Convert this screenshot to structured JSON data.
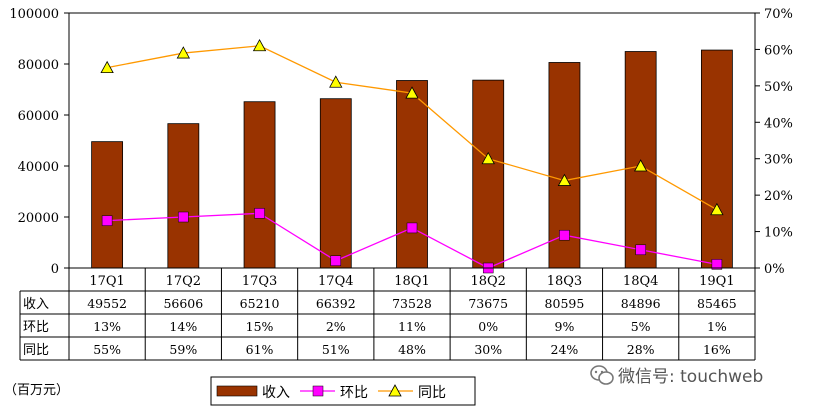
{
  "chart_data": {
    "type": "bar",
    "categories": [
      "17Q1",
      "17Q2",
      "17Q3",
      "17Q4",
      "18Q1",
      "18Q2",
      "18Q3",
      "18Q4",
      "19Q1"
    ],
    "series": [
      {
        "name": "收入",
        "type": "bar",
        "axis": "left",
        "color": "#993300",
        "values": [
          49552,
          56606,
          65210,
          66392,
          73528,
          73675,
          80595,
          84896,
          85465
        ]
      },
      {
        "name": "环比",
        "type": "line",
        "axis": "right",
        "color": "#ff00ff",
        "values": [
          13,
          14,
          15,
          2,
          11,
          0,
          9,
          5,
          1
        ]
      },
      {
        "name": "同比",
        "type": "line",
        "axis": "right",
        "color": "#ff9900",
        "marker_color": "#ffff00",
        "values": [
          55,
          59,
          61,
          51,
          48,
          30,
          24,
          28,
          16
        ]
      }
    ],
    "y_left": {
      "ylim": [
        0,
        100000
      ],
      "ticks": [
        0,
        20000,
        40000,
        60000,
        80000,
        100000
      ]
    },
    "y_right": {
      "ylim": [
        0,
        70
      ],
      "ticks": [
        "0%",
        "10%",
        "20%",
        "30%",
        "40%",
        "50%",
        "60%",
        "70%"
      ]
    },
    "table": {
      "rows": [
        {
          "label": "收入",
          "cells": [
            "49552",
            "56606",
            "65210",
            "66392",
            "73528",
            "73675",
            "80595",
            "84896",
            "85465"
          ]
        },
        {
          "label": "环比",
          "cells": [
            "13%",
            "14%",
            "15%",
            "2%",
            "11%",
            "0%",
            "9%",
            "5%",
            "1%"
          ]
        },
        {
          "label": "同比",
          "cells": [
            "55%",
            "59%",
            "61%",
            "51%",
            "48%",
            "30%",
            "24%",
            "28%",
            "16%"
          ]
        }
      ]
    },
    "unit_label": "（百万元）",
    "legend": {
      "placement": "bottom",
      "items": [
        "收入",
        "环比",
        "同比"
      ]
    },
    "grid": false
  },
  "watermark": {
    "icon": "wechat-icon",
    "text": "微信号: touchweb"
  }
}
